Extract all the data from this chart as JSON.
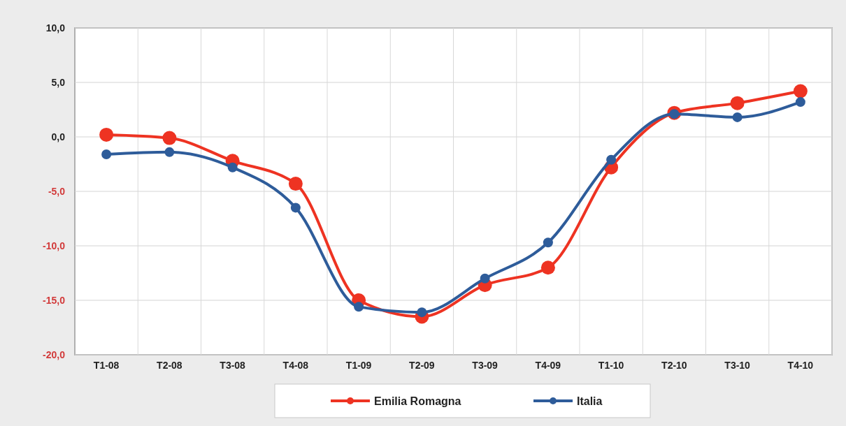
{
  "chart_data": {
    "type": "line",
    "categories": [
      "T1-08",
      "T2-08",
      "T3-08",
      "T4-08",
      "T1-09",
      "T2-09",
      "T3-09",
      "T4-09",
      "T1-10",
      "T2-10",
      "T3-10",
      "T4-10"
    ],
    "series": [
      {
        "name": "Emilia Romagna",
        "color": "#ee3322",
        "values": [
          0.2,
          -0.1,
          -2.2,
          -4.3,
          -15.0,
          -16.5,
          -13.6,
          -12.0,
          -2.8,
          2.2,
          3.1,
          4.2
        ]
      },
      {
        "name": "Italia",
        "color": "#2e5c9a",
        "values": [
          -1.6,
          -1.4,
          -2.8,
          -6.5,
          -15.6,
          -16.1,
          -13.0,
          -9.7,
          -2.1,
          2.1,
          1.8,
          3.2
        ]
      }
    ],
    "ylim": [
      -20,
      10
    ],
    "yticks": [
      {
        "value": -20,
        "label": "-20,0"
      },
      {
        "value": -15,
        "label": "-15,0"
      },
      {
        "value": -10,
        "label": "-10,0"
      },
      {
        "value": -5,
        "label": "-5,0"
      },
      {
        "value": 0,
        "label": "0,0"
      },
      {
        "value": 5,
        "label": "5,0"
      },
      {
        "value": 10,
        "label": "10,0"
      }
    ],
    "grid": true,
    "legend": "bottom",
    "marker": "circle",
    "line_style": "solid"
  }
}
